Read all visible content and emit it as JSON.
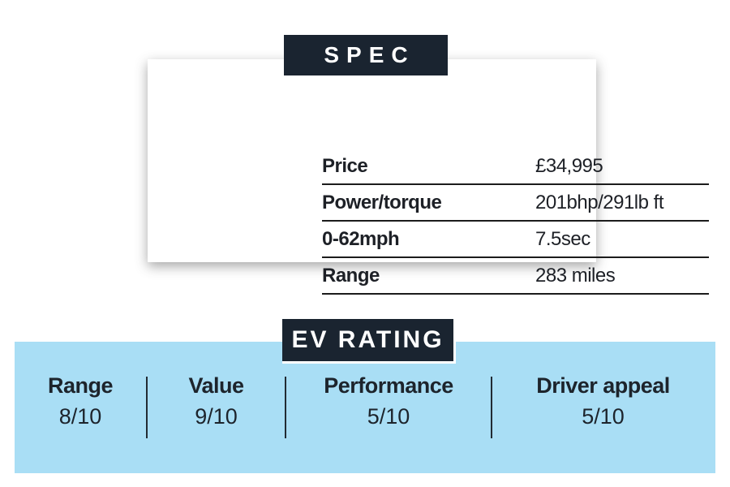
{
  "colors": {
    "badge_background": "#1a2430",
    "badge_text": "#ffffff",
    "band_background": "#a9def5",
    "text": "#1d2026",
    "rule": "#1c1c1c"
  },
  "spec": {
    "title": "SPEC",
    "rows": [
      {
        "label": "Price",
        "value": "£34,995"
      },
      {
        "label": "Power/torque",
        "value": "201bhp/291lb ft"
      },
      {
        "label": "0-62mph",
        "value": "7.5sec"
      },
      {
        "label": "Range",
        "value": "283 miles"
      }
    ]
  },
  "ev_rating": {
    "title": "EV RATING",
    "items": [
      {
        "label": "Range",
        "score": "8/10"
      },
      {
        "label": "Value",
        "score": "9/10"
      },
      {
        "label": "Performance",
        "score": "5/10"
      },
      {
        "label": "Driver appeal",
        "score": "5/10"
      }
    ]
  }
}
